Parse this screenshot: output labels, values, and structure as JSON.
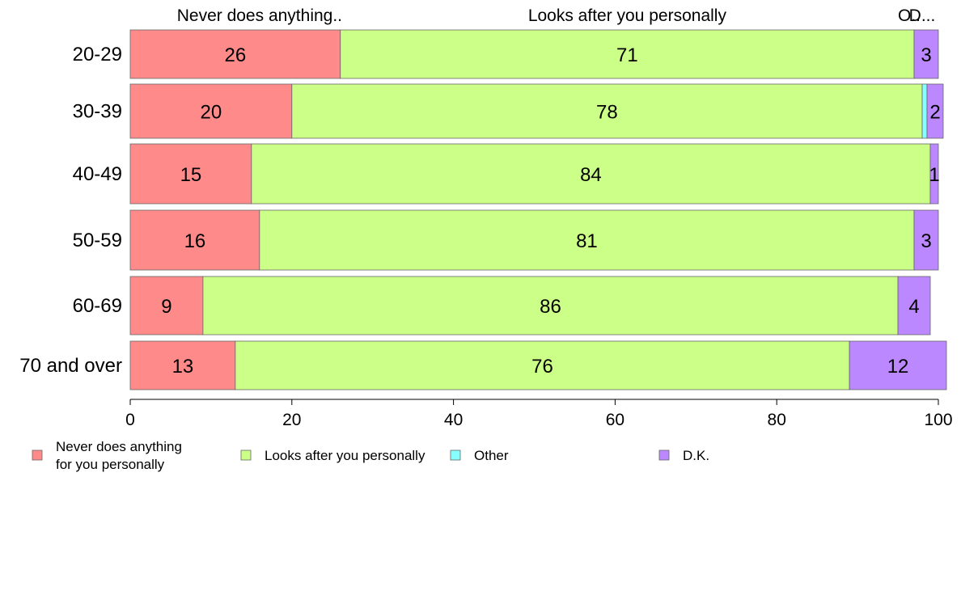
{
  "chart_data": {
    "type": "bar",
    "orientation": "horizontal",
    "stacked": true,
    "categories": [
      "20-29",
      "30-39",
      "40-49",
      "50-59",
      "60-69",
      "70 and over"
    ],
    "series": [
      {
        "name": "Never does anything for you personally",
        "legend_lines": [
          "Never does anything",
          "for you personally"
        ],
        "column_label": "Never does anything..",
        "color": "#FF8A8A",
        "values": [
          26,
          20,
          15,
          16,
          9,
          13
        ],
        "labels": [
          "26",
          "20",
          "15",
          "16",
          "9",
          "13"
        ]
      },
      {
        "name": "Looks after you personally",
        "legend_lines": [
          "Looks after you personally"
        ],
        "column_label": "Looks after you personally",
        "color": "#CCFF88",
        "values": [
          71,
          78,
          84,
          81,
          86,
          76
        ],
        "labels": [
          "71",
          "78",
          "84",
          "81",
          "86",
          "76"
        ]
      },
      {
        "name": "Other",
        "legend_lines": [
          "Other"
        ],
        "column_label": "O..",
        "color": "#88FFFF",
        "values": [
          0,
          0.6,
          0,
          0,
          0,
          0
        ],
        "labels": [
          "",
          "",
          "",
          "",
          "",
          ""
        ]
      },
      {
        "name": "D.K.",
        "legend_lines": [
          "D.K."
        ],
        "column_label": "D...",
        "color": "#BB88FF",
        "values": [
          3,
          2,
          1,
          3,
          4,
          12
        ],
        "labels": [
          "3",
          "2",
          "1",
          "3",
          "4",
          "12"
        ]
      }
    ],
    "xlim": [
      0,
      100
    ],
    "xticks": [
      "0",
      "20",
      "40",
      "60",
      "80",
      "100"
    ],
    "grid": false,
    "legend_position": "bottom"
  }
}
